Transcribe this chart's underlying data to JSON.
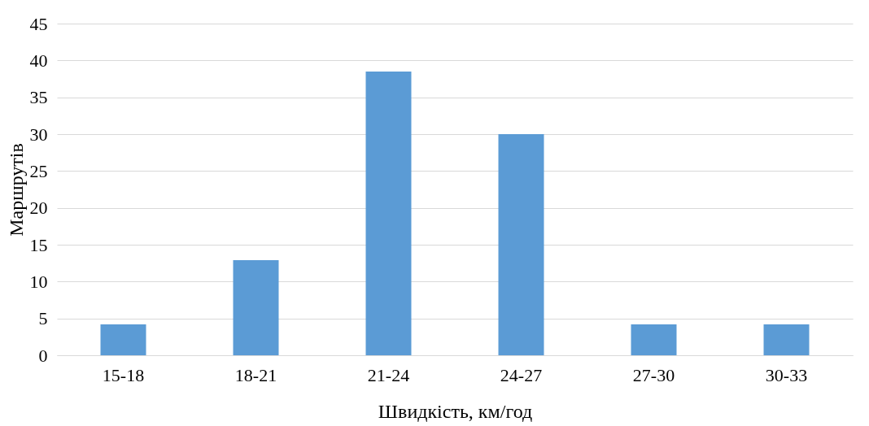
{
  "chart_data": {
    "type": "bar",
    "xlabel": "Швидкість, км/год",
    "ylabel": "Маршрутів",
    "categories": [
      "15-18",
      "18-21",
      "21-24",
      "24-27",
      "27-30",
      "30-33"
    ],
    "values": [
      4.2,
      12.9,
      38.5,
      30,
      4.2,
      4.2
    ],
    "color": "#5b9bd5",
    "ylim": [
      0,
      45
    ],
    "yticks": [
      0,
      5,
      10,
      15,
      20,
      25,
      30,
      35,
      40,
      45
    ],
    "grid": "y"
  }
}
